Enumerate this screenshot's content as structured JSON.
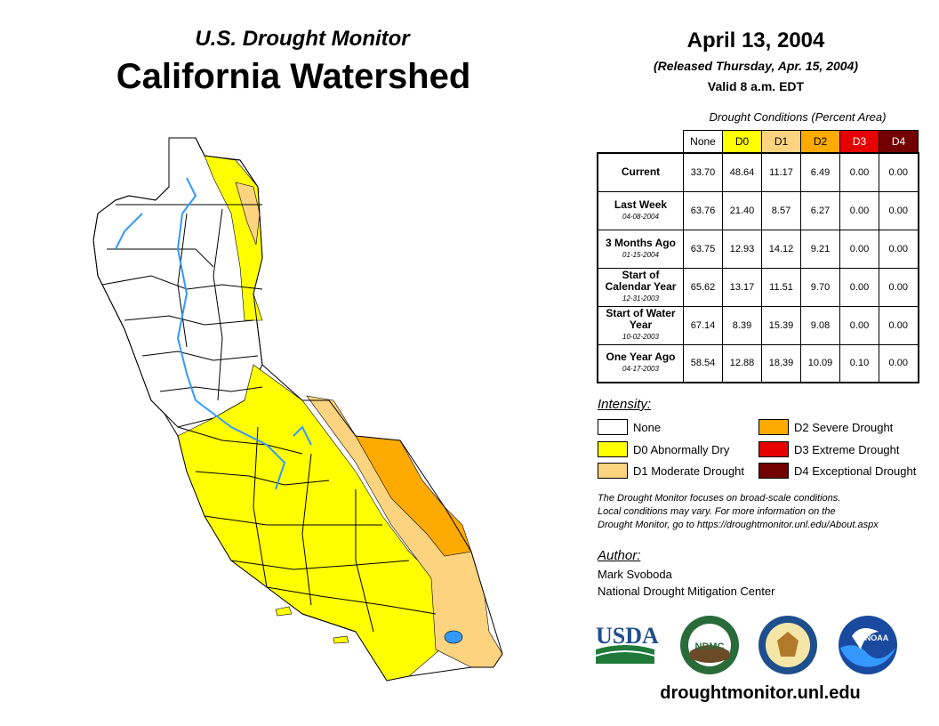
{
  "header": {
    "subtitle": "U.S. Drought Monitor",
    "title": "California Watershed"
  },
  "release": {
    "date": "April 13, 2004",
    "released": "(Released Thursday, Apr. 15, 2004)",
    "valid": "Valid 8 a.m. EDT"
  },
  "table": {
    "caption": "Drought Conditions (Percent Area)",
    "columns": [
      {
        "label": "None",
        "color": "#ffffff",
        "text_color": "#000000"
      },
      {
        "label": "D0",
        "color": "#ffff00",
        "text_color": "#000000"
      },
      {
        "label": "D1",
        "color": "#fcd37f",
        "text_color": "#000000"
      },
      {
        "label": "D2",
        "color": "#ffaa00",
        "text_color": "#000000"
      },
      {
        "label": "D3",
        "color": "#e60000",
        "text_color": "#ffffff"
      },
      {
        "label": "D4",
        "color": "#730000",
        "text_color": "#ffffff"
      }
    ],
    "rows": [
      {
        "label": "Current",
        "date": "",
        "values": [
          "33.70",
          "48.64",
          "11.17",
          "6.49",
          "0.00",
          "0.00"
        ]
      },
      {
        "label": "Last Week",
        "date": "04-08-2004",
        "values": [
          "63.76",
          "21.40",
          "8.57",
          "6.27",
          "0.00",
          "0.00"
        ]
      },
      {
        "label": "3 Months Ago",
        "date": "01-15-2004",
        "values": [
          "63.75",
          "12.93",
          "14.12",
          "9.21",
          "0.00",
          "0.00"
        ]
      },
      {
        "label": "Start of Calendar Year",
        "date": "12-31-2003",
        "values": [
          "65.62",
          "13.17",
          "11.51",
          "9.70",
          "0.00",
          "0.00"
        ]
      },
      {
        "label": "Start of Water Year",
        "date": "10-02-2003",
        "values": [
          "67.14",
          "8.39",
          "15.39",
          "9.08",
          "0.00",
          "0.00"
        ]
      },
      {
        "label": "One Year Ago",
        "date": "04-17-2003",
        "values": [
          "58.54",
          "12.88",
          "18.39",
          "10.09",
          "0.10",
          "0.00"
        ]
      }
    ]
  },
  "legend": {
    "title": "Intensity:",
    "items": [
      {
        "label": "None",
        "color": "#ffffff"
      },
      {
        "label": "D0 Abnormally Dry",
        "color": "#ffff00"
      },
      {
        "label": "D1 Moderate Drought",
        "color": "#fcd37f"
      },
      {
        "label": "D2 Severe Drought",
        "color": "#ffaa00"
      },
      {
        "label": "D3 Extreme Drought",
        "color": "#e60000"
      },
      {
        "label": "D4 Exceptional Drought",
        "color": "#730000"
      }
    ]
  },
  "note": {
    "line1": "The Drought Monitor focuses on broad-scale conditions.",
    "line2": "Local conditions may vary. For more information on the",
    "line3": "Drought Monitor, go to https://droughtmonitor.unl.edu/About.aspx"
  },
  "author": {
    "heading": "Author:",
    "name": "Mark Svoboda",
    "org": "National Drought Mitigation Center"
  },
  "logos": {
    "usda": "USDA",
    "ndmc": "NDMC",
    "noaa": "NOAA"
  },
  "footer": {
    "url": "droughtmonitor.unl.edu"
  },
  "map_colors": {
    "none": "#ffffff",
    "d0": "#ffff00",
    "d1": "#fcd37f",
    "d2": "#ffaa00",
    "river": "#3399ff",
    "border": "#000000"
  }
}
